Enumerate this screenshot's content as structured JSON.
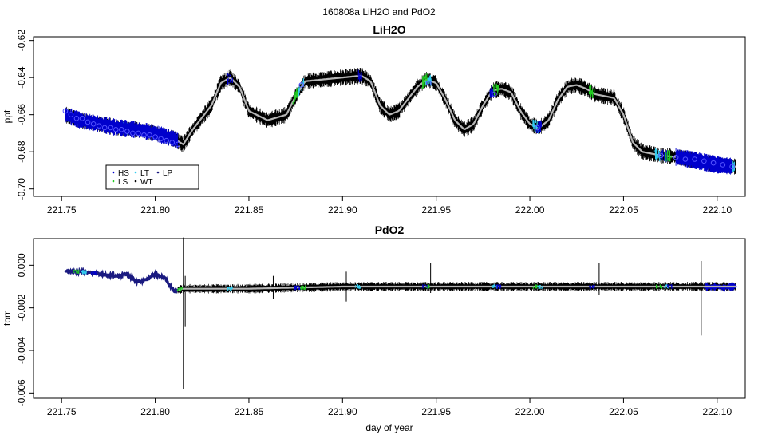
{
  "page_title": "160808a   LiH2O and PdO2",
  "x_axis_label": "day of year",
  "colors": {
    "trace": "#000000",
    "smooth": "#b5b5b5",
    "HS": "#0000cc",
    "LS": "#22cc22",
    "LT": "#33ccee",
    "WT": "#000000",
    "LP": "#1a1a80",
    "hs_marker": "#5555ff"
  },
  "chart_data": [
    {
      "type": "line",
      "title": "LiH2O",
      "ylabel": "ppt",
      "xlim": [
        221.735,
        222.115
      ],
      "ylim": [
        -0.704,
        -0.618
      ],
      "xticks": [
        221.75,
        221.8,
        221.85,
        221.9,
        221.95,
        222.0,
        222.05,
        222.1
      ],
      "xtick_labels": [
        "221.75",
        "221.80",
        "221.85",
        "221.90",
        "221.95",
        "222.00",
        "222.05",
        "222.10"
      ],
      "yticks": [
        -0.62,
        -0.64,
        -0.66,
        -0.68,
        -0.7
      ],
      "ytick_labels": [
        "-0.62",
        "-0.64",
        "-0.66",
        "-0.68",
        "-0.70"
      ],
      "legend": {
        "position": "bottom-left",
        "entries": [
          {
            "label": "HS",
            "color": "#0000cc"
          },
          {
            "label": "LS",
            "color": "#22cc22"
          },
          {
            "label": "LT",
            "color": "#33ccee"
          },
          {
            "label": "WT",
            "color": "#000000"
          },
          {
            "label": "LP",
            "color": "#1a1a80"
          }
        ]
      },
      "series": [
        {
          "name": "WT",
          "x": [
            221.752,
            221.76,
            221.77,
            221.78,
            221.79,
            221.8,
            221.81,
            221.815,
            221.82,
            221.83,
            221.835,
            221.84,
            221.845,
            221.85,
            221.86,
            221.87,
            221.875,
            221.88,
            221.89,
            221.9,
            221.91,
            221.915,
            221.92,
            221.925,
            221.93,
            221.94,
            221.945,
            221.95,
            221.955,
            221.96,
            221.965,
            221.97,
            221.975,
            221.98,
            221.985,
            221.99,
            221.995,
            222.0,
            222.005,
            222.01,
            222.015,
            222.02,
            222.025,
            222.03,
            222.035,
            222.04,
            222.045,
            222.05,
            222.055,
            222.06,
            222.07,
            222.08,
            222.09,
            222.1,
            222.11
          ],
          "y": [
            -0.66,
            -0.663,
            -0.665,
            -0.667,
            -0.668,
            -0.67,
            -0.673,
            -0.676,
            -0.668,
            -0.655,
            -0.643,
            -0.64,
            -0.645,
            -0.658,
            -0.663,
            -0.66,
            -0.65,
            -0.642,
            -0.641,
            -0.64,
            -0.639,
            -0.642,
            -0.655,
            -0.66,
            -0.658,
            -0.645,
            -0.641,
            -0.643,
            -0.652,
            -0.663,
            -0.668,
            -0.665,
            -0.655,
            -0.647,
            -0.646,
            -0.648,
            -0.658,
            -0.665,
            -0.667,
            -0.663,
            -0.652,
            -0.645,
            -0.644,
            -0.646,
            -0.649,
            -0.65,
            -0.651,
            -0.66,
            -0.675,
            -0.68,
            -0.682,
            -0.683,
            -0.685,
            -0.687,
            -0.688
          ]
        }
      ],
      "hs_means": {
        "x": [
          221.752,
          221.755,
          221.758,
          221.761,
          221.764,
          221.767,
          221.77,
          221.773,
          221.776,
          221.779,
          221.782,
          221.785,
          221.788,
          221.791,
          221.794,
          221.797,
          221.8,
          221.803,
          221.806,
          221.809,
          221.812,
          221.878,
          221.946,
          221.981,
          222.004,
          222.07,
          222.078,
          222.083,
          222.088,
          222.093,
          222.098,
          222.103,
          222.108
        ],
        "y": [
          -0.658,
          -0.66,
          -0.662,
          -0.662,
          -0.664,
          -0.665,
          -0.666,
          -0.667,
          -0.667,
          -0.668,
          -0.668,
          -0.669,
          -0.67,
          -0.67,
          -0.671,
          -0.671,
          -0.672,
          -0.673,
          -0.674,
          -0.675,
          -0.676,
          -0.644,
          -0.643,
          -0.649,
          -0.667,
          -0.682,
          -0.683,
          -0.684,
          -0.684,
          -0.685,
          -0.686,
          -0.687,
          -0.688
        ]
      },
      "cal_windows": [
        221.754,
        221.76,
        221.768,
        221.776,
        221.784,
        221.792,
        221.8,
        221.808,
        221.84,
        221.875,
        221.878,
        221.909,
        221.944,
        221.946,
        221.98,
        221.982,
        222.003,
        222.005,
        222.033,
        222.068,
        222.072,
        222.074,
        222.093,
        222.098,
        222.104,
        222.108
      ]
    },
    {
      "type": "line",
      "title": "PdO2",
      "ylabel": "torr",
      "xlabel": "day of year",
      "xlim": [
        221.735,
        222.115
      ],
      "ylim": [
        -0.00625,
        0.00125
      ],
      "xticks": [
        221.75,
        221.8,
        221.85,
        221.9,
        221.95,
        222.0,
        222.05,
        222.1
      ],
      "xtick_labels": [
        "221.75",
        "221.80",
        "221.85",
        "221.90",
        "221.95",
        "222.00",
        "222.05",
        "222.10"
      ],
      "yticks": [
        0.0,
        -0.002,
        -0.004,
        -0.006
      ],
      "ytick_labels": [
        "0.000",
        "-0.002",
        "-0.004",
        "-0.006"
      ],
      "series": [
        {
          "name": "WT",
          "x": [
            221.752,
            221.76,
            221.77,
            221.78,
            221.785,
            221.79,
            221.795,
            221.8,
            221.805,
            221.81,
            221.815,
            221.82,
            221.85,
            221.9,
            221.95,
            222.0,
            222.05,
            222.09,
            222.095,
            222.1,
            222.11
          ],
          "y": [
            -0.0003,
            -0.0003,
            -0.0004,
            -0.0005,
            -0.0004,
            -0.0008,
            -0.0007,
            -0.0004,
            -0.0006,
            -0.0012,
            -0.0011,
            -0.0011,
            -0.0011,
            -0.001,
            -0.001,
            -0.001,
            -0.001,
            -0.001,
            -0.001,
            -0.001,
            -0.001
          ]
        }
      ],
      "spikes": [
        {
          "x": 221.815,
          "high": 0.0013,
          "low": -0.0058
        },
        {
          "x": 221.816,
          "high": -0.0005,
          "low": -0.0029
        },
        {
          "x": 222.0915,
          "high": 0.0002,
          "low": -0.0033
        },
        {
          "x": 221.902,
          "high": -0.0003,
          "low": -0.0017
        },
        {
          "x": 221.947,
          "high": 0.0001,
          "low": -0.0013
        },
        {
          "x": 222.037,
          "high": 0.0001,
          "low": -0.0014
        },
        {
          "x": 221.863,
          "high": -0.0005,
          "low": -0.0016
        }
      ],
      "cal_windows": [
        221.758,
        221.762,
        221.767,
        221.813,
        221.84,
        221.876,
        221.879,
        221.908,
        221.944,
        221.946,
        221.981,
        221.983,
        222.003,
        222.005,
        222.033,
        222.069,
        222.073,
        222.075
      ]
    }
  ]
}
